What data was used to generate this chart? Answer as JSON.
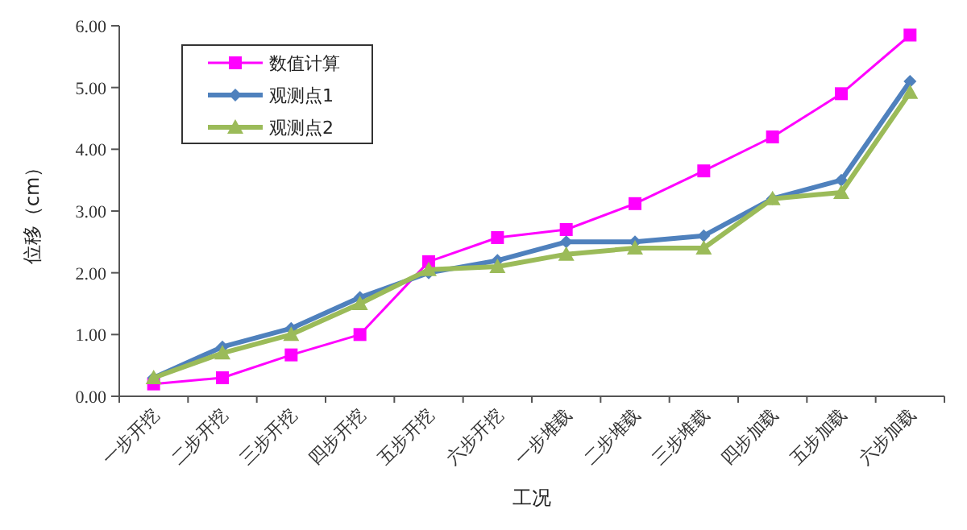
{
  "chart_data": {
    "type": "line",
    "xlabel": "工况",
    "ylabel": "位移（cm）",
    "categories": [
      "一步开挖",
      "二步开挖",
      "三步开挖",
      "四步开挖",
      "五步开挖",
      "六步开挖",
      "一步堆载",
      "二步堆载",
      "三步堆载",
      "四步加载",
      "五步加载",
      "六步加载"
    ],
    "series": [
      {
        "name": "数值计算",
        "color": "#ff00ff",
        "marker": "square",
        "values": [
          0.2,
          0.3,
          0.67,
          1.0,
          2.18,
          2.57,
          2.7,
          3.12,
          3.65,
          4.2,
          4.9,
          5.85
        ]
      },
      {
        "name": "观测点1",
        "color": "#4f81bd",
        "marker": "diamond",
        "values": [
          0.3,
          0.8,
          1.1,
          1.6,
          2.0,
          2.2,
          2.5,
          2.5,
          2.6,
          3.2,
          3.5,
          5.1
        ]
      },
      {
        "name": "观测点2",
        "color": "#9bbb59",
        "marker": "triangle",
        "values": [
          0.3,
          0.7,
          1.0,
          1.5,
          2.05,
          2.1,
          2.3,
          2.4,
          2.4,
          3.2,
          3.3,
          4.92
        ]
      }
    ],
    "ylim": [
      0,
      6
    ],
    "yticks": [
      {
        "value": 0,
        "label": "0.00"
      },
      {
        "value": 1,
        "label": "1.00"
      },
      {
        "value": 2,
        "label": "2.00"
      },
      {
        "value": 3,
        "label": "3.00"
      },
      {
        "value": 4,
        "label": "4.00"
      },
      {
        "value": 5,
        "label": "5.00"
      },
      {
        "value": 6,
        "label": "6.00"
      }
    ],
    "grid": false,
    "legend": "top left"
  }
}
